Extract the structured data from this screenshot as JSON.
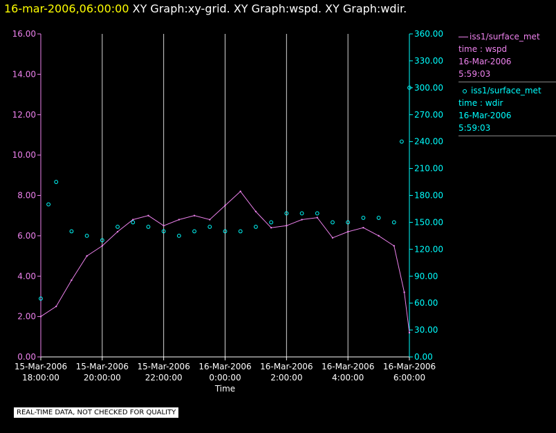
{
  "header": {
    "time": "16-mar-2006,06:00:00",
    "rest": "XY Graph:xy-grid.  XY Graph:wspd.  XY Graph:wdir."
  },
  "notice": "REAL-TIME DATA, NOT CHECKED FOR QUALITY",
  "legend": [
    {
      "series": "wspd",
      "color": "#ee82ee",
      "marker": "line",
      "lines": [
        "iss1/surface_met",
        "time : wspd",
        "16-Mar-2006",
        "5:59:03"
      ]
    },
    {
      "series": "wdir",
      "color": "#00ffff",
      "marker": "circle",
      "lines": [
        "iss1/surface_met",
        "time : wdir",
        "16-Mar-2006",
        "5:59:03"
      ]
    }
  ],
  "chart_data": {
    "type": "line",
    "xlabel": "Time",
    "x_ticks": [
      {
        "date": "15-Mar-2006",
        "time": "18:00:00"
      },
      {
        "date": "15-Mar-2006",
        "time": "20:00:00"
      },
      {
        "date": "15-Mar-2006",
        "time": "22:00:00"
      },
      {
        "date": "16-Mar-2006",
        "time": "0:00:00"
      },
      {
        "date": "16-Mar-2006",
        "time": "2:00:00"
      },
      {
        "date": "16-Mar-2006",
        "time": "4:00:00"
      },
      {
        "date": "16-Mar-2006",
        "time": "6:00:00"
      }
    ],
    "grid": "vertical",
    "left_axis": {
      "color": "#ee82ee",
      "ylim": [
        0,
        16
      ],
      "ticks": [
        "0.00",
        "2.00",
        "4.00",
        "6.00",
        "8.00",
        "10.00",
        "12.00",
        "14.00",
        "16.00"
      ]
    },
    "right_axis": {
      "color": "#00ffff",
      "ylim": [
        0,
        360
      ],
      "ticks": [
        "0.00",
        "30.00",
        "60.00",
        "90.00",
        "120.00",
        "150.00",
        "180.00",
        "210.00",
        "240.00",
        "270.00",
        "300.00",
        "330.00",
        "360.00"
      ]
    },
    "series": [
      {
        "name": "wspd",
        "axis": "left",
        "style": "line",
        "color": "#ee82ee",
        "x": [
          "15-Mar-2006 18:00",
          "15-Mar-2006 18:30",
          "15-Mar-2006 19:00",
          "15-Mar-2006 19:30",
          "15-Mar-2006 20:00",
          "15-Mar-2006 20:30",
          "15-Mar-2006 21:00",
          "15-Mar-2006 21:30",
          "15-Mar-2006 22:00",
          "15-Mar-2006 22:30",
          "15-Mar-2006 23:00",
          "15-Mar-2006 23:30",
          "16-Mar-2006 00:00",
          "16-Mar-2006 00:30",
          "16-Mar-2006 01:00",
          "16-Mar-2006 01:30",
          "16-Mar-2006 02:00",
          "16-Mar-2006 02:30",
          "16-Mar-2006 03:00",
          "16-Mar-2006 03:30",
          "16-Mar-2006 04:00",
          "16-Mar-2006 04:30",
          "16-Mar-2006 05:00",
          "16-Mar-2006 05:30",
          "16-Mar-2006 05:50",
          "16-Mar-2006 06:00"
        ],
        "values": [
          2.0,
          2.5,
          3.8,
          5.0,
          5.5,
          6.2,
          6.8,
          7.0,
          6.5,
          6.8,
          7.0,
          6.8,
          7.5,
          8.2,
          7.2,
          6.4,
          6.5,
          6.8,
          6.9,
          5.9,
          6.2,
          6.4,
          6.0,
          5.5,
          3.2,
          1.2
        ]
      },
      {
        "name": "wdir",
        "axis": "right",
        "style": "points",
        "color": "#00ffff",
        "x": [
          "15-Mar-2006 18:00",
          "15-Mar-2006 18:15",
          "15-Mar-2006 18:30",
          "15-Mar-2006 19:00",
          "15-Mar-2006 19:30",
          "15-Mar-2006 20:00",
          "15-Mar-2006 20:30",
          "15-Mar-2006 21:00",
          "15-Mar-2006 21:30",
          "15-Mar-2006 22:00",
          "15-Mar-2006 22:30",
          "15-Mar-2006 23:00",
          "15-Mar-2006 23:30",
          "16-Mar-2006 00:00",
          "16-Mar-2006 00:30",
          "16-Mar-2006 01:00",
          "16-Mar-2006 01:30",
          "16-Mar-2006 02:00",
          "16-Mar-2006 02:30",
          "16-Mar-2006 03:00",
          "16-Mar-2006 03:30",
          "16-Mar-2006 04:00",
          "16-Mar-2006 04:30",
          "16-Mar-2006 05:00",
          "16-Mar-2006 05:30",
          "16-Mar-2006 05:45",
          "16-Mar-2006 06:00"
        ],
        "values": [
          65,
          170,
          195,
          140,
          135,
          130,
          145,
          150,
          145,
          140,
          135,
          140,
          145,
          140,
          140,
          145,
          150,
          160,
          160,
          160,
          150,
          150,
          155,
          155,
          150,
          240,
          300
        ]
      }
    ]
  }
}
